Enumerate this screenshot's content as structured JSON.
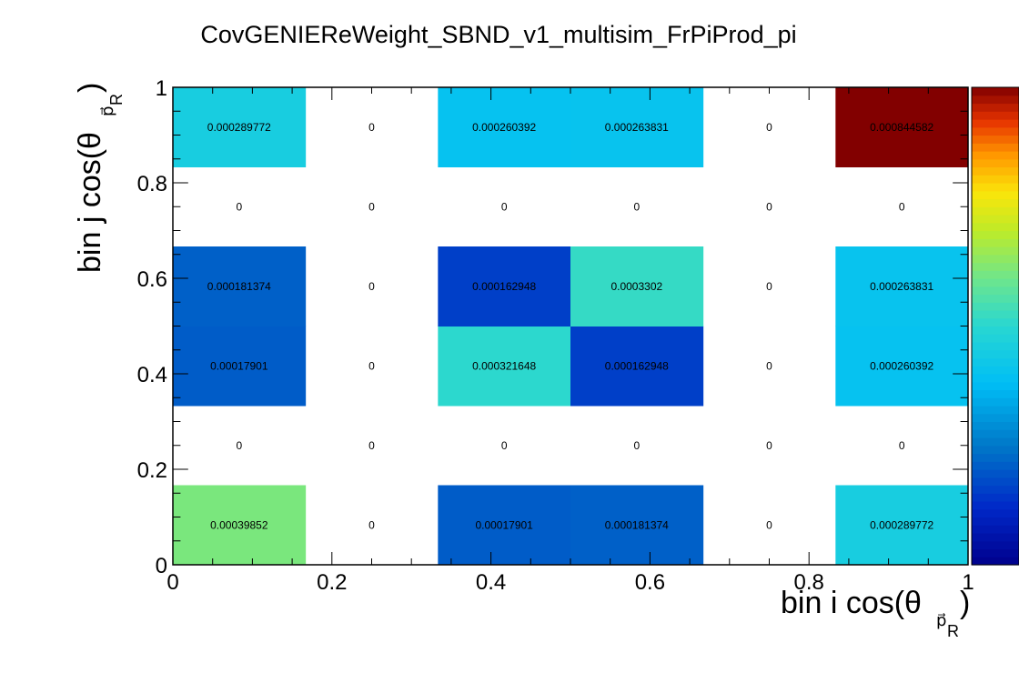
{
  "chart_data": {
    "type": "heatmap",
    "title": "CovGENIEReWeight_SBND_v1_multisim_FrPiProd_pi",
    "xlabel": {
      "main": "bin i cos(θ",
      "sub": "p⃗",
      "subsub": "R",
      "close": ")"
    },
    "ylabel": {
      "main": "bin j cos(θ",
      "sub": "p⃗",
      "subsub": "R",
      "close": ")"
    },
    "xlim": [
      0,
      1
    ],
    "ylim": [
      0,
      1
    ],
    "nx": 6,
    "ny": 6,
    "x_ticks": [
      {
        "value": 0,
        "label": "0"
      },
      {
        "value": 0.2,
        "label": "0.2"
      },
      {
        "value": 0.4,
        "label": "0.4"
      },
      {
        "value": 0.6,
        "label": "0.6"
      },
      {
        "value": 0.8,
        "label": "0.8"
      },
      {
        "value": 1,
        "label": "1"
      }
    ],
    "y_ticks": [
      {
        "value": 0,
        "label": "0"
      },
      {
        "value": 0.2,
        "label": "0.2"
      },
      {
        "value": 0.4,
        "label": "0.4"
      },
      {
        "value": 0.6,
        "label": "0.6"
      },
      {
        "value": 0.8,
        "label": "0.8"
      },
      {
        "value": 1,
        "label": "1"
      }
    ],
    "color_min": 0.00012,
    "color_max": 0.000844582,
    "colorbar": "rainbow",
    "cells": [
      [
        "0.00039852",
        "0",
        "0.00017901",
        "0.000181374",
        "0",
        "0.000289772"
      ],
      [
        "0",
        "0",
        "0",
        "0",
        "0",
        "0"
      ],
      [
        "0.00017901",
        "0",
        "0.000321648",
        "0.000162948",
        "0",
        "0.000260392"
      ],
      [
        "0.000181374",
        "0",
        "0.000162948",
        "0.0003302",
        "0",
        "0.000263831"
      ],
      [
        "0",
        "0",
        "0",
        "0",
        "0",
        "0"
      ],
      [
        "0.000289772",
        "0",
        "0.000260392",
        "0.000263831",
        "0",
        "0.000844582"
      ]
    ]
  }
}
